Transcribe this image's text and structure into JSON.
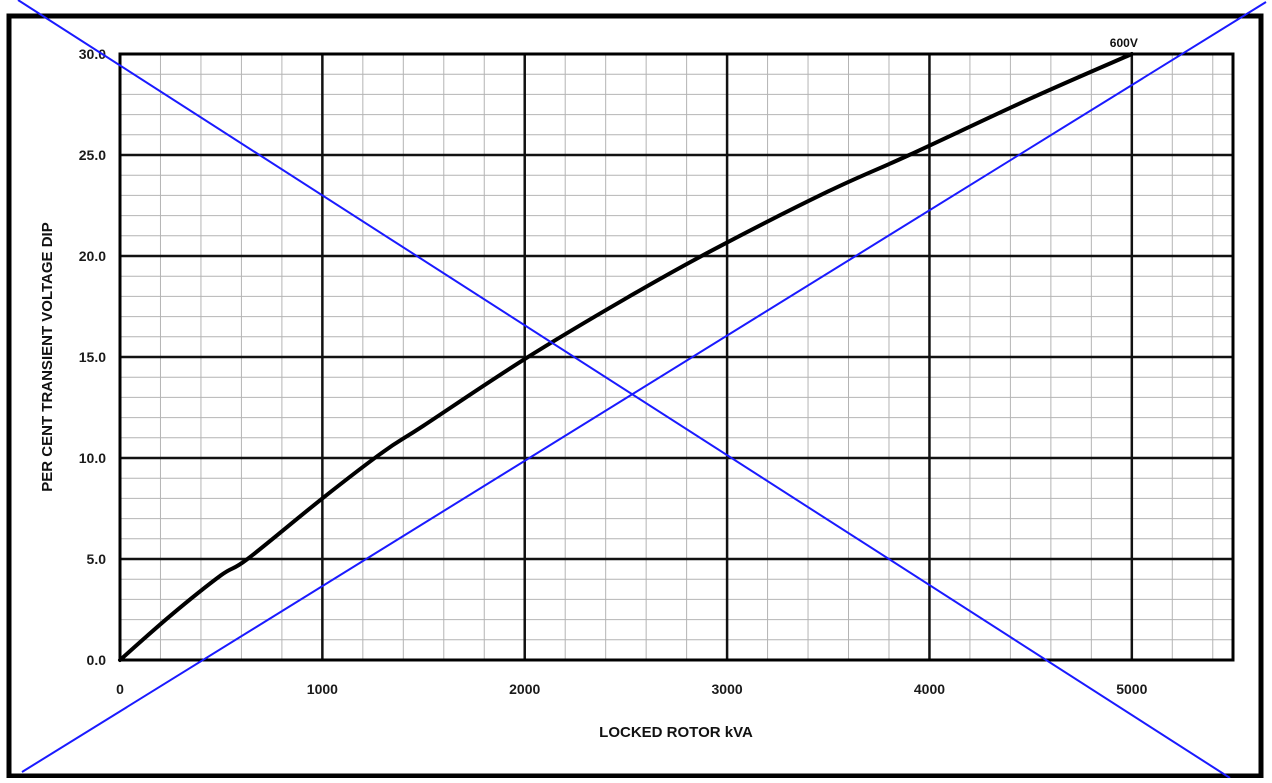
{
  "chart_data": {
    "type": "line",
    "title": "",
    "xlabel": "LOCKED ROTOR kVA",
    "ylabel": "PER CENT TRANSIENT VOLTAGE DIP",
    "xlim": [
      0,
      5500
    ],
    "ylim": [
      0,
      30
    ],
    "x_ticks": [
      0,
      1000,
      2000,
      3000,
      4000,
      5000
    ],
    "x_tick_labels": [
      "0",
      "1000",
      "2000",
      "3000",
      "4000",
      "5000"
    ],
    "y_ticks": [
      0,
      5,
      10,
      15,
      20,
      25,
      30
    ],
    "y_tick_labels": [
      "0.0",
      "5.0",
      "10.0",
      "15.0",
      "20.0",
      "25.0",
      "30.0"
    ],
    "grid": true,
    "minor_grid": true,
    "series": [
      {
        "name": "600V",
        "x": [
          0,
          250,
          500,
          630,
          1000,
          1300,
          1500,
          2000,
          2500,
          2930,
          3500,
          3900,
          4500,
          5000
        ],
        "y": [
          0,
          2.2,
          4.2,
          5.0,
          8.0,
          10.3,
          11.6,
          14.9,
          17.9,
          20.3,
          23.2,
          25.0,
          27.8,
          30.0
        ],
        "color": "#000000"
      }
    ],
    "overlay_color": "#1a1aff"
  }
}
